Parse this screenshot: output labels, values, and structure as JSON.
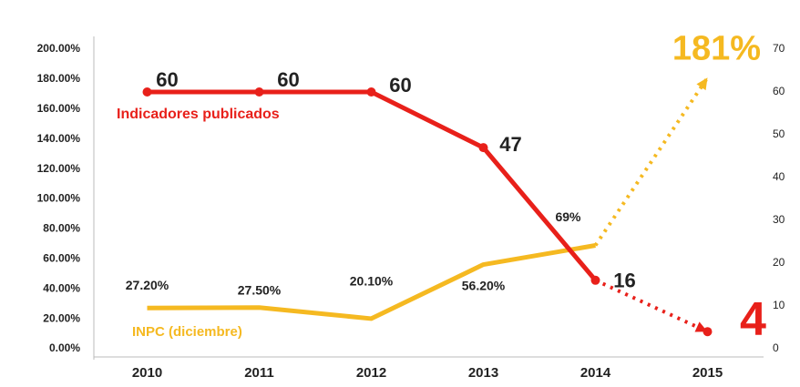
{
  "chart_data": {
    "type": "line",
    "categories": [
      "2010",
      "2011",
      "2012",
      "2013",
      "2014",
      "2015"
    ],
    "series": [
      {
        "name": "INPC (diciembre)",
        "color": "#f5b921",
        "axis": "y",
        "values": [
          27.2,
          27.5,
          20.1,
          56.2,
          69,
          181
        ],
        "value_labels": [
          "27.20%",
          "27.50%",
          "20.10%",
          "56.20%",
          "69%",
          "181%"
        ]
      },
      {
        "name": "Indicadores publicados",
        "color": "#e8201a",
        "axis": "y2",
        "values": [
          60,
          60,
          60,
          47,
          16,
          4
        ]
      }
    ],
    "projection_from_index": 4,
    "ylim": [
      0,
      200
    ],
    "yticks": [
      {
        "value": 0,
        "label": "0.00%"
      },
      {
        "value": 20,
        "label": "20.00%"
      },
      {
        "value": 40,
        "label": "40.00%"
      },
      {
        "value": 60,
        "label": "60.00%"
      },
      {
        "value": 80,
        "label": "80.00%"
      },
      {
        "value": 100,
        "label": "100.00%"
      },
      {
        "value": 120,
        "label": "120.00%"
      },
      {
        "value": 140,
        "label": "140.00%"
      },
      {
        "value": 160,
        "label": "160.00%"
      },
      {
        "value": 180,
        "label": "180.00%"
      },
      {
        "value": 200,
        "label": "200.00%"
      }
    ],
    "y2lim": [
      0,
      70
    ],
    "y2ticks": [
      0,
      10,
      20,
      30,
      40,
      50,
      60,
      70
    ]
  }
}
